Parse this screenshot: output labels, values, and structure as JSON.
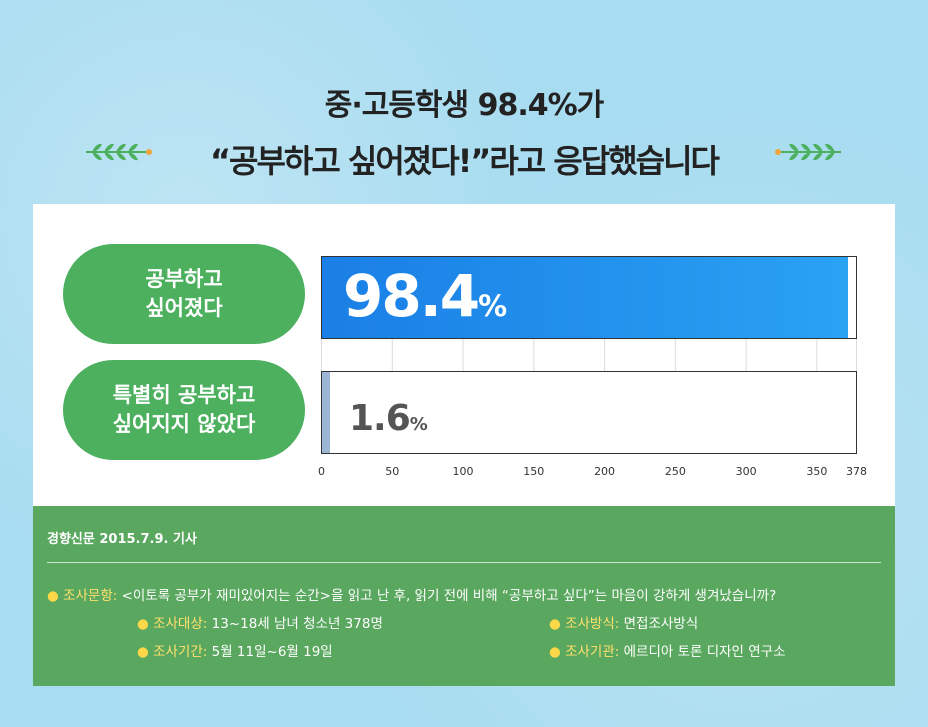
{
  "headline_line1": "중·고등학생 98.4%가",
  "headline_line2": "“공부하고 싶어졌다!”라고 응답했습니다",
  "colors": {
    "background": "#a8dcf0",
    "pill": "#4cb05e",
    "bar_primary": "#1e88e8",
    "bar_secondary": "#9db6d6",
    "footer": "#5aa75f",
    "accent": "#ffe16b"
  },
  "icons": [
    "leaf-left-icon",
    "leaf-right-icon"
  ],
  "chart_data": {
    "type": "bar",
    "orientation": "horizontal",
    "categories": [
      "공부하고\n싶어졌다",
      "특별히 공부하고\n싶어지지 않았다"
    ],
    "values": [
      98.4,
      1.6
    ],
    "value_labels": [
      "98.4",
      "1.6"
    ],
    "value_unit": "%",
    "bar_values_respondents": [
      372,
      6
    ],
    "xlim": [
      0,
      378
    ],
    "xticks": [
      "0",
      "50",
      "100",
      "150",
      "200",
      "250",
      "300",
      "350",
      "378"
    ],
    "grid": true
  },
  "source": {
    "citation": "경향신문 2015.7.9. 기사",
    "question_key": "조사문항:",
    "question_value": "<이토록 공부가 재미있어지는 순간>을 읽고 난 후, 읽기 전에 비해 “공부하고 싶다”는 마음이 강하게 생겨났습니까?",
    "target_key": "조사대상:",
    "target_value": "13~18세 남녀 청소년 378명",
    "method_key": "조사방식:",
    "method_value": "면접조사방식",
    "period_key": "조사기간:",
    "period_value": "5월 11일~6월 19일",
    "org_key": "조사기관:",
    "org_value": "에르디아 토론 디자인 연구소",
    "bullet": "●"
  }
}
